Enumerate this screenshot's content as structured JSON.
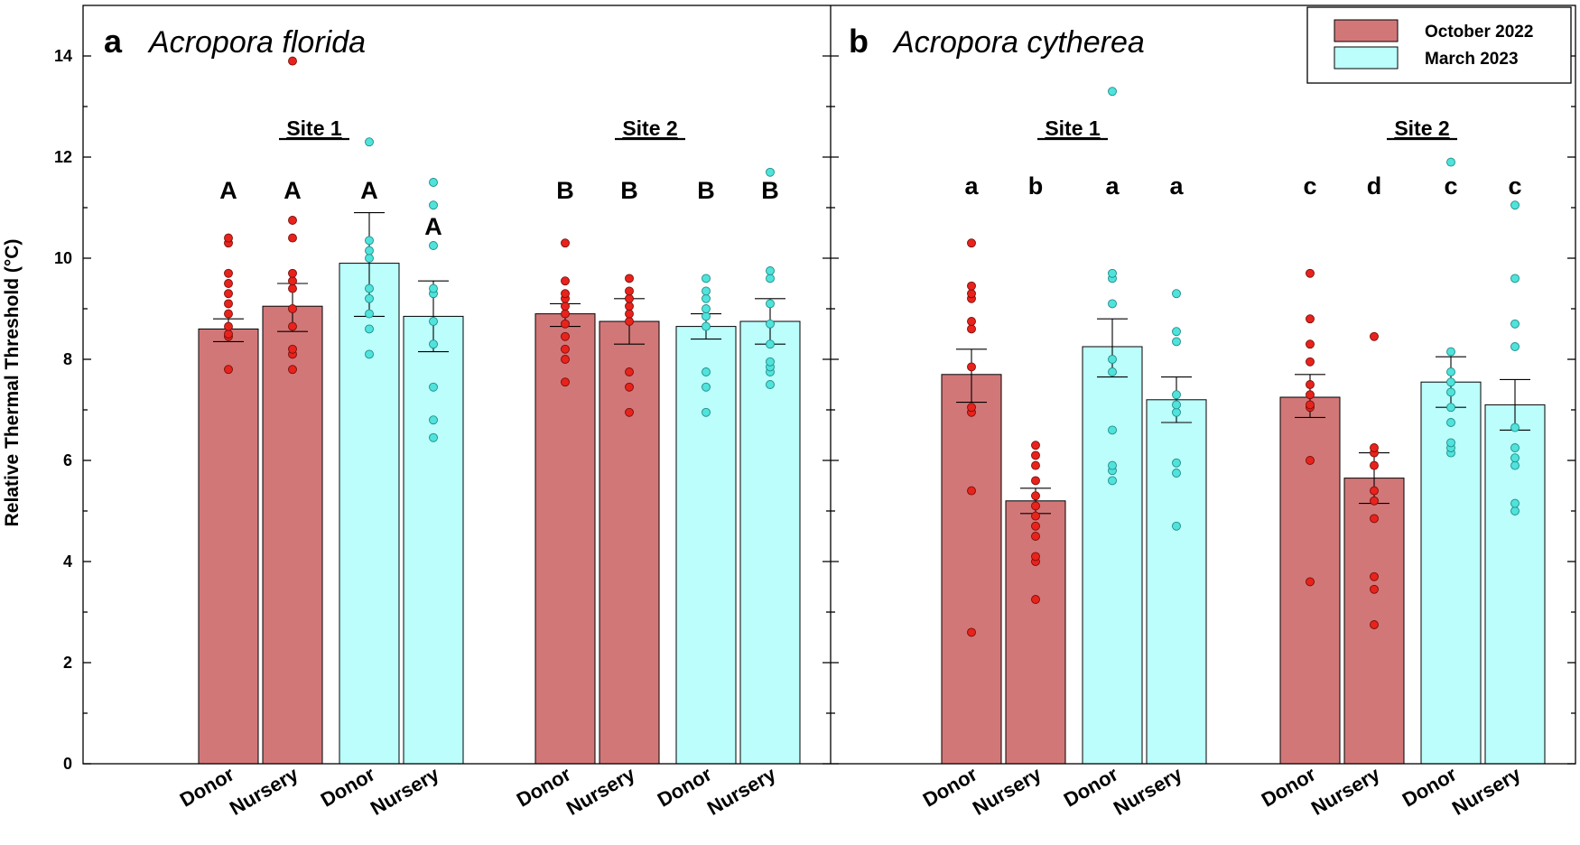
{
  "chart_data": [
    {
      "type": "bar",
      "panel_letter": "a",
      "title": "Acropora florida",
      "ylabel": "Relative Thermal Threshold (°C)",
      "ylim": [
        0,
        15
      ],
      "yticks": [
        0,
        2,
        4,
        6,
        8,
        10,
        12,
        14
      ],
      "sites": [
        {
          "label": "Site 1",
          "bars": [
            {
              "category": "Donor",
              "season": "October 2022",
              "mean": 8.6,
              "se_low": 8.35,
              "se_high": 8.8,
              "letter": "A",
              "points": [
                7.8,
                8.45,
                8.5,
                8.65,
                8.9,
                9.1,
                9.3,
                9.5,
                9.7,
                10.3,
                10.4
              ]
            },
            {
              "category": "Nursery",
              "season": "October 2022",
              "mean": 9.05,
              "se_low": 8.55,
              "se_high": 9.5,
              "letter": "A",
              "points": [
                7.8,
                8.1,
                8.2,
                8.65,
                9.0,
                9.4,
                9.55,
                9.7,
                10.4,
                10.75,
                13.9
              ]
            },
            {
              "category": "Donor",
              "season": "March 2023",
              "mean": 9.9,
              "se_low": 8.85,
              "se_high": 10.9,
              "letter": "A",
              "points": [
                8.1,
                8.6,
                8.9,
                9.2,
                9.4,
                10.0,
                10.15,
                10.35,
                12.3
              ]
            },
            {
              "category": "Nursery",
              "season": "March 2023",
              "mean": 8.85,
              "se_low": 8.15,
              "se_high": 9.55,
              "letter": "A",
              "points": [
                6.45,
                6.8,
                7.45,
                8.3,
                8.75,
                9.3,
                9.4,
                10.25,
                11.05,
                11.5
              ]
            }
          ]
        },
        {
          "label": "Site 2",
          "bars": [
            {
              "category": "Donor",
              "season": "October 2022",
              "mean": 8.9,
              "se_low": 8.65,
              "se_high": 9.1,
              "letter": "B",
              "points": [
                7.55,
                8.0,
                8.2,
                8.45,
                8.7,
                8.9,
                9.05,
                9.2,
                9.3,
                9.55,
                10.3
              ]
            },
            {
              "category": "Nursery",
              "season": "October 2022",
              "mean": 8.75,
              "se_low": 8.3,
              "se_high": 9.2,
              "letter": "B",
              "points": [
                6.95,
                7.45,
                7.75,
                8.75,
                8.9,
                9.05,
                9.2,
                9.35,
                9.6
              ]
            },
            {
              "category": "Donor",
              "season": "March 2023",
              "mean": 8.65,
              "se_low": 8.4,
              "se_high": 8.9,
              "letter": "B",
              "points": [
                6.95,
                7.45,
                7.75,
                8.65,
                8.85,
                9.0,
                9.2,
                9.35,
                9.6
              ]
            },
            {
              "category": "Nursery",
              "season": "March 2023",
              "mean": 8.75,
              "se_low": 8.3,
              "se_high": 9.2,
              "letter": "B",
              "points": [
                7.5,
                7.75,
                7.85,
                7.95,
                8.3,
                8.7,
                9.1,
                9.6,
                9.75,
                11.7
              ]
            }
          ]
        }
      ]
    },
    {
      "type": "bar",
      "panel_letter": "b",
      "title": "Acropora cytherea",
      "ylim": [
        0,
        15
      ],
      "sites": [
        {
          "label": "Site 1",
          "bars": [
            {
              "category": "Donor",
              "season": "October 2022",
              "mean": 7.7,
              "se_low": 7.15,
              "se_high": 8.2,
              "letter": "a",
              "points": [
                2.6,
                5.4,
                6.95,
                7.05,
                7.85,
                8.6,
                8.75,
                9.2,
                9.3,
                9.45,
                10.3
              ]
            },
            {
              "category": "Nursery",
              "season": "October 2022",
              "mean": 5.2,
              "se_low": 4.95,
              "se_high": 5.45,
              "letter": "b",
              "points": [
                3.25,
                4.0,
                4.1,
                4.5,
                4.7,
                4.9,
                5.1,
                5.3,
                5.6,
                5.9,
                6.1,
                6.3
              ]
            },
            {
              "category": "Donor",
              "season": "March 2023",
              "mean": 8.25,
              "se_low": 7.65,
              "se_high": 8.8,
              "letter": "a",
              "points": [
                5.6,
                5.8,
                5.9,
                6.6,
                7.75,
                8.0,
                9.1,
                9.6,
                9.7,
                13.3
              ]
            },
            {
              "category": "Nursery",
              "season": "March 2023",
              "mean": 7.2,
              "se_low": 6.75,
              "se_high": 7.65,
              "letter": "a",
              "points": [
                4.7,
                5.75,
                5.95,
                6.95,
                7.1,
                7.3,
                8.35,
                8.55,
                9.3
              ]
            }
          ]
        },
        {
          "label": "Site 2",
          "bars": [
            {
              "category": "Donor",
              "season": "October 2022",
              "mean": 7.25,
              "se_low": 6.85,
              "se_high": 7.7,
              "letter": "c",
              "points": [
                3.6,
                6.0,
                7.05,
                7.1,
                7.3,
                7.5,
                7.95,
                8.3,
                8.8,
                9.7
              ]
            },
            {
              "category": "Nursery",
              "season": "October 2022",
              "mean": 5.65,
              "se_low": 5.15,
              "se_high": 6.15,
              "letter": "d",
              "points": [
                2.75,
                3.45,
                3.7,
                4.85,
                5.2,
                5.4,
                5.9,
                6.15,
                6.25,
                8.45
              ]
            },
            {
              "category": "Donor",
              "season": "March 2023",
              "mean": 7.55,
              "se_low": 7.05,
              "se_high": 8.05,
              "letter": "c",
              "points": [
                6.15,
                6.25,
                6.35,
                6.75,
                7.05,
                7.35,
                7.55,
                7.75,
                8.15,
                11.9
              ]
            },
            {
              "category": "Nursery",
              "season": "March 2023",
              "mean": 7.1,
              "se_low": 6.6,
              "se_high": 7.6,
              "letter": "c",
              "points": [
                5.0,
                5.15,
                5.9,
                6.05,
                6.25,
                6.65,
                8.25,
                8.7,
                9.6,
                11.05
              ]
            }
          ]
        }
      ]
    }
  ],
  "legend": {
    "placement": "top-right",
    "entries": [
      {
        "label": "October 2022",
        "color": "#d27778"
      },
      {
        "label": "March 2023",
        "color": "#bbfefc"
      }
    ]
  },
  "colors": {
    "october_bar": "#d27778",
    "october_point": "#e8231c",
    "march_bar": "#bbfefc",
    "march_point": "#4fe3dc"
  }
}
